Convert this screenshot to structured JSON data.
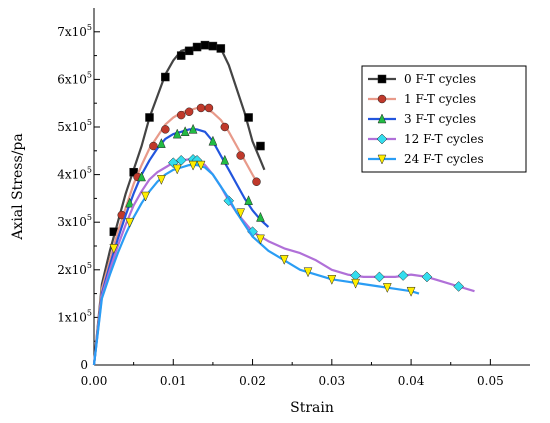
{
  "chart_data": {
    "type": "line",
    "xlabel": "Strain",
    "ylabel": "Axial Stress/pa",
    "xlim": [
      0,
      0.055
    ],
    "ylim": [
      0,
      750000
    ],
    "x_ticks": [
      {
        "value": 0.0,
        "label": "0.00"
      },
      {
        "value": 0.01,
        "label": "0.01"
      },
      {
        "value": 0.02,
        "label": "0.02"
      },
      {
        "value": 0.03,
        "label": "0.03"
      },
      {
        "value": 0.04,
        "label": "0.04"
      },
      {
        "value": 0.05,
        "label": "0.05"
      }
    ],
    "y_ticks": [
      {
        "value": 0,
        "base": "0",
        "exp": ""
      },
      {
        "value": 100000,
        "base": "1x10",
        "exp": "5"
      },
      {
        "value": 200000,
        "base": "2x10",
        "exp": "5"
      },
      {
        "value": 300000,
        "base": "3x10",
        "exp": "5"
      },
      {
        "value": 400000,
        "base": "4x10",
        "exp": "5"
      },
      {
        "value": 500000,
        "base": "5x10",
        "exp": "5"
      },
      {
        "value": 600000,
        "base": "6x10",
        "exp": "5"
      },
      {
        "value": 700000,
        "base": "7x10",
        "exp": "5"
      }
    ],
    "grid": false,
    "legend_position": "top-right",
    "series": [
      {
        "name": "0 F-T cycles",
        "color": "#444444",
        "marker_color": "#000000",
        "marker": "square",
        "x": [
          0,
          0.001,
          0.002,
          0.003,
          0.004,
          0.005,
          0.006,
          0.007,
          0.008,
          0.009,
          0.01,
          0.011,
          0.012,
          0.013,
          0.014,
          0.015,
          0.016,
          0.017,
          0.018,
          0.019,
          0.02,
          0.021,
          0.0215
        ],
        "y": [
          0,
          170000,
          240000,
          300000,
          360000,
          410000,
          460000,
          520000,
          565000,
          610000,
          640000,
          660000,
          665000,
          670000,
          675000,
          670000,
          665000,
          630000,
          580000,
          530000,
          470000,
          430000,
          410000
        ],
        "markers": [
          [
            0.0025,
            280000
          ],
          [
            0.005,
            405000
          ],
          [
            0.007,
            520000
          ],
          [
            0.009,
            605000
          ],
          [
            0.011,
            650000
          ],
          [
            0.012,
            660000
          ],
          [
            0.013,
            668000
          ],
          [
            0.014,
            672000
          ],
          [
            0.015,
            670000
          ],
          [
            0.016,
            665000
          ],
          [
            0.0195,
            520000
          ],
          [
            0.021,
            460000
          ]
        ]
      },
      {
        "name": "1 F-T cycles",
        "color": "#e89a8a",
        "marker_color": "#c0392b",
        "marker": "circle",
        "x": [
          0,
          0.001,
          0.002,
          0.003,
          0.004,
          0.005,
          0.006,
          0.007,
          0.008,
          0.009,
          0.01,
          0.011,
          0.012,
          0.013,
          0.014,
          0.015,
          0.016,
          0.017,
          0.018,
          0.019,
          0.02,
          0.0205
        ],
        "y": [
          0,
          160000,
          220000,
          280000,
          330000,
          380000,
          420000,
          455000,
          480000,
          505000,
          520000,
          530000,
          535000,
          540000,
          540000,
          530000,
          515000,
          490000,
          460000,
          430000,
          400000,
          385000
        ],
        "markers": [
          [
            0.0035,
            315000
          ],
          [
            0.0055,
            395000
          ],
          [
            0.0075,
            460000
          ],
          [
            0.009,
            495000
          ],
          [
            0.011,
            525000
          ],
          [
            0.012,
            532000
          ],
          [
            0.0135,
            540000
          ],
          [
            0.0145,
            540000
          ],
          [
            0.0165,
            500000
          ],
          [
            0.0185,
            440000
          ],
          [
            0.0205,
            385000
          ]
        ]
      },
      {
        "name": "3 F-T cycles",
        "color": "#2255dd",
        "marker_color": "#22bb44",
        "marker": "triangle",
        "x": [
          0,
          0.001,
          0.002,
          0.003,
          0.004,
          0.005,
          0.006,
          0.007,
          0.008,
          0.009,
          0.01,
          0.011,
          0.012,
          0.013,
          0.014,
          0.015,
          0.016,
          0.017,
          0.018,
          0.019,
          0.02,
          0.021,
          0.022
        ],
        "y": [
          0,
          150000,
          210000,
          265000,
          315000,
          360000,
          400000,
          430000,
          455000,
          475000,
          485000,
          490000,
          495000,
          495000,
          490000,
          470000,
          440000,
          410000,
          380000,
          350000,
          325000,
          305000,
          290000
        ],
        "markers": [
          [
            0.0045,
            340000
          ],
          [
            0.006,
            395000
          ],
          [
            0.0085,
            465000
          ],
          [
            0.0105,
            485000
          ],
          [
            0.0115,
            490000
          ],
          [
            0.0125,
            495000
          ],
          [
            0.015,
            470000
          ],
          [
            0.0165,
            430000
          ],
          [
            0.0195,
            345000
          ],
          [
            0.021,
            310000
          ]
        ]
      },
      {
        "name": "12 F-T cycles",
        "color": "#b070d8",
        "marker_color": "#33ddee",
        "marker": "diamond",
        "x": [
          0,
          0.001,
          0.002,
          0.003,
          0.004,
          0.005,
          0.006,
          0.007,
          0.008,
          0.009,
          0.01,
          0.011,
          0.012,
          0.013,
          0.014,
          0.015,
          0.016,
          0.017,
          0.018,
          0.019,
          0.02,
          0.022,
          0.024,
          0.026,
          0.028,
          0.03,
          0.032,
          0.034,
          0.036,
          0.038,
          0.04,
          0.042,
          0.044,
          0.046,
          0.048
        ],
        "y": [
          0,
          145000,
          200000,
          250000,
          295000,
          335000,
          365000,
          390000,
          405000,
          415000,
          425000,
          430000,
          432000,
          430000,
          420000,
          400000,
          375000,
          345000,
          320000,
          300000,
          280000,
          260000,
          245000,
          235000,
          220000,
          200000,
          190000,
          185000,
          185000,
          185000,
          190000,
          185000,
          175000,
          165000,
          155000
        ],
        "markers": [
          [
            0.01,
            425000
          ],
          [
            0.011,
            430000
          ],
          [
            0.0125,
            432000
          ],
          [
            0.013,
            430000
          ],
          [
            0.017,
            345000
          ],
          [
            0.02,
            280000
          ],
          [
            0.033,
            188000
          ],
          [
            0.036,
            185000
          ],
          [
            0.039,
            188000
          ],
          [
            0.042,
            185000
          ],
          [
            0.046,
            165000
          ]
        ]
      },
      {
        "name": "24 F-T cycles",
        "color": "#2a9df4",
        "marker_color": "#ffee00",
        "marker": "triangle-down",
        "x": [
          0,
          0.001,
          0.002,
          0.003,
          0.004,
          0.005,
          0.006,
          0.007,
          0.008,
          0.009,
          0.01,
          0.011,
          0.012,
          0.013,
          0.014,
          0.015,
          0.016,
          0.017,
          0.018,
          0.019,
          0.02,
          0.022,
          0.024,
          0.026,
          0.028,
          0.03,
          0.032,
          0.034,
          0.036,
          0.038,
          0.04,
          0.041
        ],
        "y": [
          0,
          140000,
          190000,
          235000,
          275000,
          310000,
          340000,
          365000,
          385000,
          400000,
          410000,
          415000,
          420000,
          420000,
          415000,
          400000,
          375000,
          350000,
          320000,
          295000,
          270000,
          240000,
          220000,
          200000,
          190000,
          180000,
          175000,
          170000,
          165000,
          160000,
          155000,
          150000
        ],
        "markers": [
          [
            0.0025,
            245000
          ],
          [
            0.0045,
            300000
          ],
          [
            0.0065,
            355000
          ],
          [
            0.0085,
            390000
          ],
          [
            0.0105,
            412000
          ],
          [
            0.0125,
            420000
          ],
          [
            0.0135,
            420000
          ],
          [
            0.0185,
            320000
          ],
          [
            0.021,
            265000
          ],
          [
            0.024,
            222000
          ],
          [
            0.027,
            196000
          ],
          [
            0.03,
            180000
          ],
          [
            0.033,
            172000
          ],
          [
            0.037,
            163000
          ],
          [
            0.04,
            155000
          ]
        ]
      }
    ]
  }
}
